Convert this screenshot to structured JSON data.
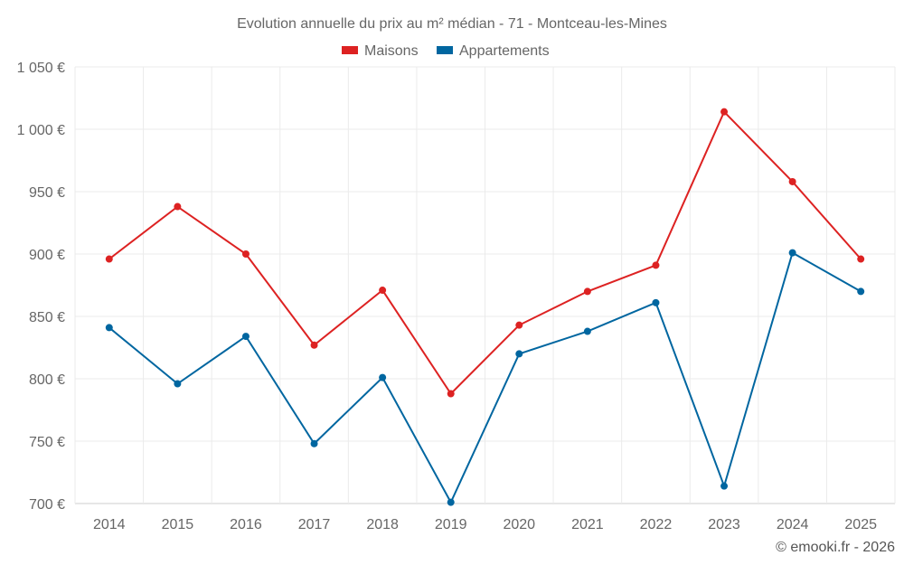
{
  "chart_data": {
    "type": "line",
    "title": "Evolution annuelle du prix au m² médian - 71 - Montceau-les-Mines",
    "x": [
      "2014",
      "2015",
      "2016",
      "2017",
      "2018",
      "2019",
      "2020",
      "2021",
      "2022",
      "2023",
      "2024",
      "2025"
    ],
    "series": [
      {
        "name": "Maisons",
        "color": "#dd2222",
        "values": [
          896,
          938,
          900,
          827,
          871,
          788,
          843,
          870,
          891,
          1014,
          958,
          896
        ]
      },
      {
        "name": "Appartements",
        "color": "#0066a0",
        "values": [
          841,
          796,
          834,
          748,
          801,
          701,
          820,
          838,
          861,
          714,
          901,
          870
        ]
      }
    ],
    "ylim": [
      700,
      1050
    ],
    "yticks": [
      700,
      750,
      800,
      850,
      900,
      950,
      1000,
      1050
    ],
    "ytick_labels": [
      "700 €",
      "750 €",
      "800 €",
      "850 €",
      "900 €",
      "950 €",
      "1 000 €",
      "1 050 €"
    ],
    "grid": true,
    "legend": "top-center",
    "credit": "© emooki.fr - 2026"
  }
}
